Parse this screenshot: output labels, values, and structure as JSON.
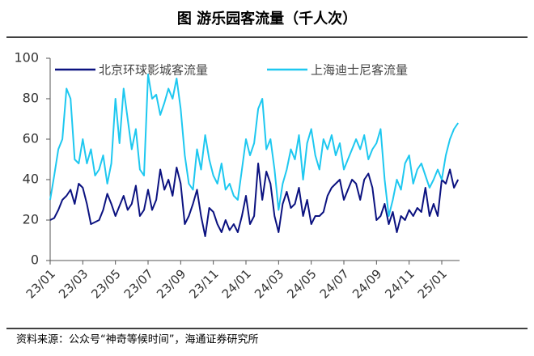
{
  "chart_data": {
    "type": "line",
    "title": "图  游乐园客流量（千人次）",
    "source": "资料来源：公众号“神奇等候时间”，海通证券研究所",
    "categories": [
      "23/01",
      null,
      null,
      null,
      null,
      null,
      null,
      null,
      "23/03",
      null,
      null,
      null,
      null,
      null,
      null,
      null,
      "23/05",
      null,
      null,
      null,
      null,
      null,
      null,
      null,
      "23/07",
      null,
      null,
      null,
      null,
      null,
      null,
      null,
      "23/09",
      null,
      null,
      null,
      null,
      null,
      null,
      null,
      "23/11",
      null,
      null,
      null,
      null,
      null,
      null,
      null,
      "24/01",
      null,
      null,
      null,
      null,
      null,
      null,
      null,
      "24/03",
      null,
      null,
      null,
      null,
      null,
      null,
      null,
      "24/05",
      null,
      null,
      null,
      null,
      null,
      null,
      null,
      "24/07",
      null,
      null,
      null,
      null,
      null,
      null,
      null,
      "24/09",
      null,
      null,
      null,
      null,
      null,
      null,
      null,
      "24/11",
      null,
      null,
      null,
      null,
      null,
      null,
      null,
      "25/01",
      null,
      null,
      null,
      null
    ],
    "series": [
      {
        "name": "北京环球影城客流量",
        "color": "#0b1280",
        "values": [
          20,
          21,
          25,
          30,
          32,
          35,
          28,
          38,
          36,
          28,
          18,
          19,
          20,
          25,
          33,
          28,
          22,
          27,
          32,
          25,
          28,
          37,
          22,
          25,
          35,
          25,
          30,
          45,
          35,
          40,
          32,
          46,
          38,
          18,
          22,
          28,
          35,
          22,
          12,
          26,
          24,
          18,
          14,
          20,
          15,
          18,
          14,
          22,
          32,
          18,
          22,
          48,
          30,
          44,
          38,
          22,
          14,
          28,
          34,
          26,
          28,
          36,
          22,
          30,
          18,
          22,
          22,
          24,
          32,
          36,
          38,
          40,
          30,
          35,
          40,
          38,
          30,
          40,
          43,
          36,
          20,
          22,
          28,
          18,
          24,
          14,
          22,
          20,
          25,
          22,
          26,
          24,
          36,
          22,
          28,
          22,
          40,
          38,
          45,
          36,
          40
        ]
      },
      {
        "name": "上海迪士尼客流量",
        "color": "#1ec8f0",
        "values": [
          30,
          42,
          55,
          60,
          85,
          80,
          50,
          48,
          60,
          48,
          55,
          42,
          45,
          52,
          38,
          48,
          80,
          58,
          85,
          70,
          55,
          65,
          45,
          42,
          92,
          80,
          82,
          72,
          78,
          85,
          80,
          90,
          75,
          52,
          38,
          35,
          55,
          45,
          62,
          50,
          42,
          38,
          48,
          35,
          38,
          32,
          30,
          45,
          60,
          52,
          58,
          75,
          80,
          55,
          60,
          45,
          25,
          38,
          45,
          55,
          50,
          62,
          40,
          58,
          65,
          52,
          45,
          60,
          55,
          62,
          52,
          58,
          45,
          50,
          55,
          60,
          55,
          62,
          50,
          55,
          58,
          65,
          40,
          22,
          30,
          40,
          35,
          48,
          52,
          38,
          45,
          48,
          42,
          36,
          40,
          45,
          40,
          52,
          60,
          65,
          68
        ]
      }
    ],
    "ylim": [
      0,
      100
    ],
    "yticks": [
      0,
      20,
      40,
      60,
      80,
      100
    ]
  }
}
